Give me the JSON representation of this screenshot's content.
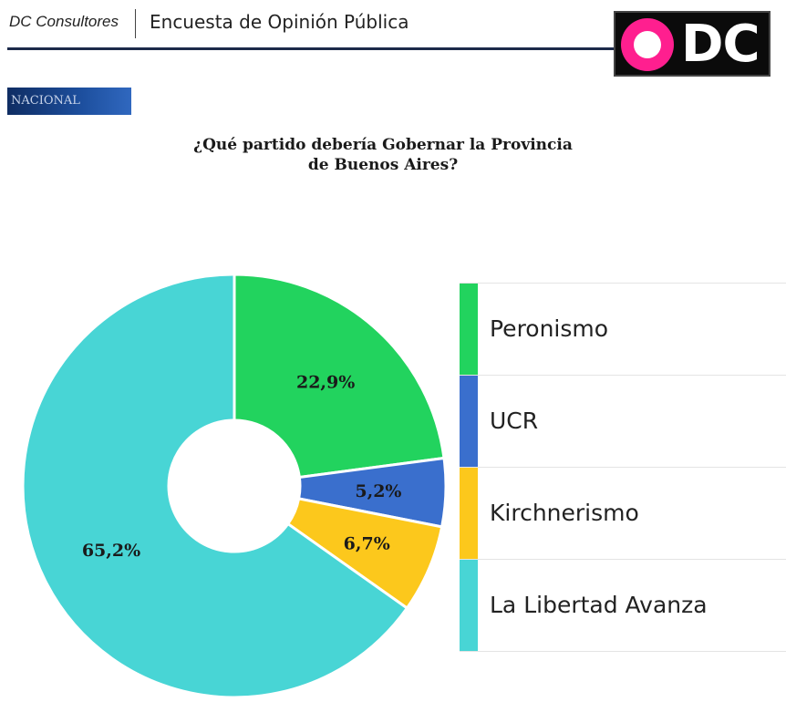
{
  "header": {
    "brand": "DC Consultores",
    "title": "Encuesta de Opinión Pública",
    "logo_text": "DC"
  },
  "badge": "NACIONAL",
  "question": {
    "line1": "¿Qué partido debería Gobernar la Provincia",
    "line2": "de Buenos Aires?"
  },
  "chart_data": {
    "type": "pie",
    "donut": true,
    "unit": "%",
    "categories": [
      "Peronismo",
      "UCR",
      "Kirchnerismo",
      "La Libertad Avanza"
    ],
    "values": [
      22.9,
      5.2,
      6.7,
      65.2
    ],
    "data_labels": [
      "22,9%",
      "5,2%",
      "6,7%",
      "65,2%"
    ],
    "colors": [
      "#22d35e",
      "#3a6fcd",
      "#fcc81c",
      "#48d5d5"
    ],
    "legend_position": "right"
  }
}
